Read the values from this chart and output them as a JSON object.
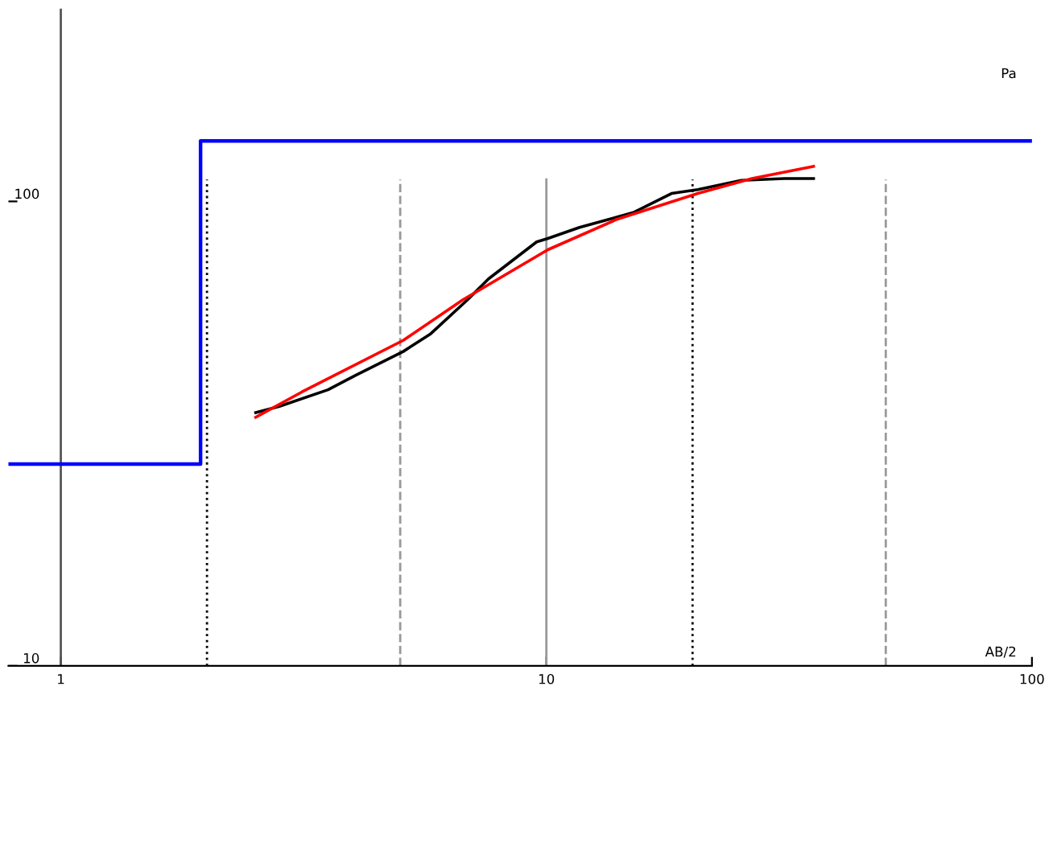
{
  "chart_data": {
    "type": "line",
    "xlabel": "AB/2",
    "ylabel": "Pa",
    "log": "xy",
    "xlim": [
      0.78,
      100
    ],
    "ylim": [
      10,
      260
    ],
    "xticks": [
      1,
      10,
      100
    ],
    "yticks": [
      10,
      100
    ],
    "grid": false,
    "legend": false,
    "marker": "none",
    "series": [
      {
        "color": "#000000",
        "x": [
          2.52,
          2.82,
          3.55,
          4.04,
          5.07,
          5.78,
          6.88,
          7.6,
          9.55,
          10.07,
          11.7,
          15.1,
          18.1,
          20.5,
          25.2,
          30.9,
          35.5
        ],
        "values": [
          35.1,
          36.2,
          39.3,
          42.2,
          47.5,
          51.9,
          61.4,
          68.1,
          81.8,
          83.2,
          87.9,
          94.6,
          104,
          106,
          111,
          112,
          112
        ]
      },
      {
        "color": "#ff0000",
        "x": [
          2.52,
          3.14,
          5.07,
          6.73,
          10.07,
          14.0,
          20.5,
          26.5,
          35.5
        ],
        "values": [
          34.3,
          38.9,
          50.2,
          61.4,
          78.7,
          91.6,
          104,
          112,
          119
        ]
      },
      {
        "type": "step",
        "color": "#0000ff",
        "x": [
          0.78,
          1.94,
          100
        ],
        "values": [
          27.2,
          135,
          135
        ]
      }
    ],
    "ref_lines": [
      {
        "axis": "x",
        "value": 2,
        "color": "#000000",
        "line_style": "dotted"
      },
      {
        "axis": "x",
        "value": 5,
        "color": "#999999",
        "line_style": "dashed"
      },
      {
        "axis": "x",
        "value": 10,
        "color": "#999999",
        "line_style": "solid"
      },
      {
        "axis": "x",
        "value": 20,
        "color": "#000000",
        "line_style": "dotted"
      },
      {
        "axis": "x",
        "value": 50,
        "color": "#999999",
        "line_style": "dashed"
      }
    ]
  }
}
